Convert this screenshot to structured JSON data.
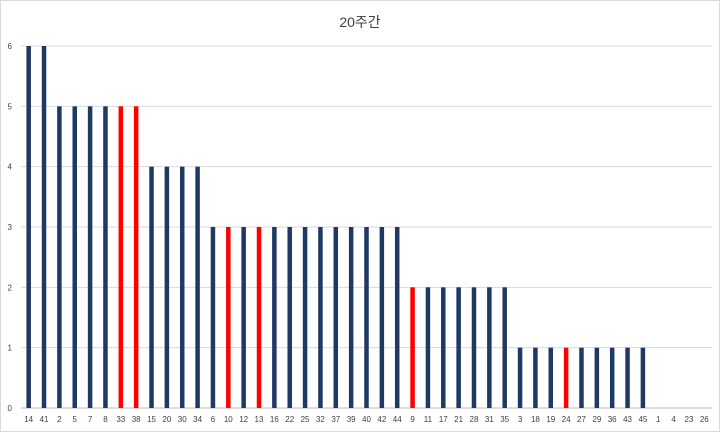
{
  "chart_data": {
    "type": "bar",
    "title": "20주간",
    "xlabel": "",
    "ylabel": "",
    "ylim": [
      0,
      6
    ],
    "yticks": [
      0,
      1,
      2,
      3,
      4,
      5,
      6
    ],
    "grid": true,
    "legend": "none",
    "colors": {
      "default": "#1f3864",
      "highlight": "#ff0000"
    },
    "categories": [
      "14",
      "41",
      "2",
      "5",
      "7",
      "8",
      "33",
      "38",
      "15",
      "20",
      "30",
      "34",
      "6",
      "10",
      "12",
      "13",
      "16",
      "22",
      "25",
      "32",
      "37",
      "39",
      "40",
      "42",
      "44",
      "9",
      "11",
      "17",
      "21",
      "28",
      "31",
      "35",
      "3",
      "18",
      "19",
      "24",
      "27",
      "29",
      "36",
      "43",
      "45",
      "1",
      "4",
      "23",
      "26"
    ],
    "values": [
      6,
      6,
      5,
      5,
      5,
      5,
      5,
      5,
      4,
      4,
      4,
      4,
      3,
      3,
      3,
      3,
      3,
      3,
      3,
      3,
      3,
      3,
      3,
      3,
      3,
      2,
      2,
      2,
      2,
      2,
      2,
      2,
      1,
      1,
      1,
      1,
      1,
      1,
      1,
      1,
      1,
      0,
      0,
      0,
      0
    ],
    "highlighted": [
      "33",
      "38",
      "10",
      "13",
      "9",
      "24"
    ]
  }
}
